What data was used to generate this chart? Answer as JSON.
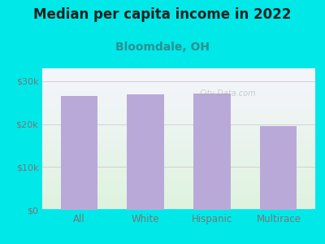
{
  "title": "Median per capita income in 2022",
  "subtitle": "Bloomdale, OH",
  "categories": [
    "All",
    "White",
    "Hispanic",
    "Multirace"
  ],
  "values": [
    26500,
    27000,
    27200,
    19500
  ],
  "bar_color": "#b9a9d9",
  "title_fontsize": 12,
  "subtitle_fontsize": 10,
  "subtitle_color": "#2e9090",
  "tick_label_color": "#777777",
  "yticks": [
    0,
    10000,
    20000,
    30000
  ],
  "ytick_labels": [
    "$0",
    "$10k",
    "$20k",
    "$30k"
  ],
  "ylim": [
    0,
    33000
  ],
  "bg_outer": "#00e8e8",
  "watermark": "City-Data.com",
  "grid_color": "#cccccc",
  "title_color": "#222222"
}
